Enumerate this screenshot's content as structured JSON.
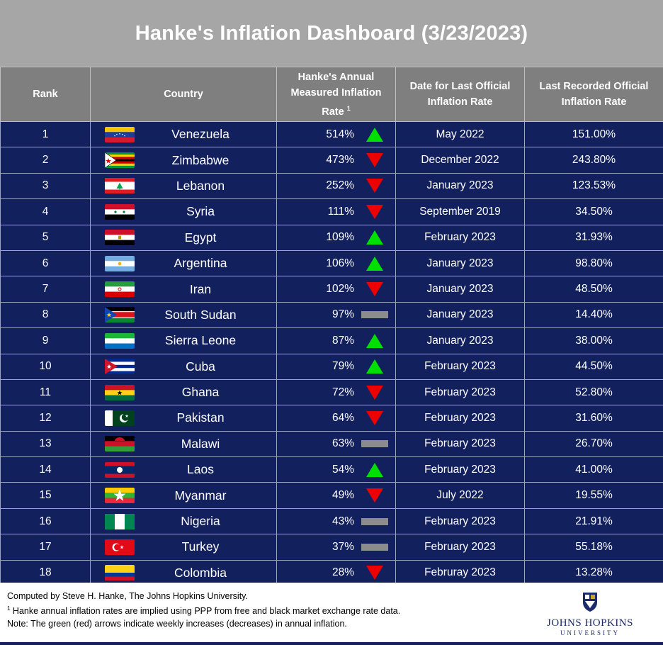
{
  "title": "Hanke's Inflation Dashboard (3/23/2023)",
  "colors": {
    "header_bg": "#7f7f7f",
    "title_bg": "#a6a6a6",
    "row_bg": "#12205e",
    "up": "#00e000",
    "down": "#ee0000",
    "flat": "#8c8c8c"
  },
  "headers": {
    "rank": "Rank",
    "country": "Country",
    "hanke_line1": "Hanke's Annual",
    "hanke_line2": "Measured Inflation",
    "hanke_line3": "Rate",
    "hanke_sup": "1",
    "date_line1": "Date for Last Official",
    "date_line2": "Inflation Rate",
    "official_line1": "Last Recorded Official",
    "official_line2": "Inflation Rate"
  },
  "chart_data": {
    "type": "table",
    "columns": [
      "Rank",
      "Country",
      "Hanke's Annual Measured Inflation Rate",
      "Date for Last Official Inflation Rate",
      "Last Recorded Official Inflation Rate"
    ],
    "rows": [
      {
        "rank": "1",
        "country": "Venezuela",
        "flag": "venezuela-flag",
        "hanke": "514%",
        "trend": "up",
        "date": "May 2022",
        "official": "151.00%"
      },
      {
        "rank": "2",
        "country": "Zimbabwe",
        "flag": "zimbabwe-flag",
        "hanke": "473%",
        "trend": "down",
        "date": "December 2022",
        "official": "243.80%"
      },
      {
        "rank": "3",
        "country": "Lebanon",
        "flag": "lebanon-flag",
        "hanke": "252%",
        "trend": "down",
        "date": "January 2023",
        "official": "123.53%"
      },
      {
        "rank": "4",
        "country": "Syria",
        "flag": "syria-flag",
        "hanke": "111%",
        "trend": "down",
        "date": "September 2019",
        "official": "34.50%"
      },
      {
        "rank": "5",
        "country": "Egypt",
        "flag": "egypt-flag",
        "hanke": "109%",
        "trend": "up",
        "date": "February 2023",
        "official": "31.93%"
      },
      {
        "rank": "6",
        "country": "Argentina",
        "flag": "argentina-flag",
        "hanke": "106%",
        "trend": "up",
        "date": "January 2023",
        "official": "98.80%"
      },
      {
        "rank": "7",
        "country": "Iran",
        "flag": "iran-flag",
        "hanke": "102%",
        "trend": "down",
        "date": "January 2023",
        "official": "48.50%"
      },
      {
        "rank": "8",
        "country": "South Sudan",
        "flag": "south-sudan-flag",
        "hanke": "97%",
        "trend": "flat",
        "date": "January 2023",
        "official": "14.40%"
      },
      {
        "rank": "9",
        "country": "Sierra Leone",
        "flag": "sierra-leone-flag",
        "hanke": "87%",
        "trend": "up",
        "date": "January 2023",
        "official": "38.00%"
      },
      {
        "rank": "10",
        "country": "Cuba",
        "flag": "cuba-flag",
        "hanke": "79%",
        "trend": "up",
        "date": "February 2023",
        "official": "44.50%"
      },
      {
        "rank": "11",
        "country": "Ghana",
        "flag": "ghana-flag",
        "hanke": "72%",
        "trend": "down",
        "date": "February 2023",
        "official": "52.80%"
      },
      {
        "rank": "12",
        "country": "Pakistan",
        "flag": "pakistan-flag",
        "hanke": "64%",
        "trend": "down",
        "date": "February 2023",
        "official": "31.60%"
      },
      {
        "rank": "13",
        "country": "Malawi",
        "flag": "malawi-flag",
        "hanke": "63%",
        "trend": "flat",
        "date": "February 2023",
        "official": "26.70%"
      },
      {
        "rank": "14",
        "country": "Laos",
        "flag": "laos-flag",
        "hanke": "54%",
        "trend": "up",
        "date": "February 2023",
        "official": "41.00%"
      },
      {
        "rank": "15",
        "country": "Myanmar",
        "flag": "myanmar-flag",
        "hanke": "49%",
        "trend": "down",
        "date": "July 2022",
        "official": "19.55%"
      },
      {
        "rank": "16",
        "country": "Nigeria",
        "flag": "nigeria-flag",
        "hanke": "43%",
        "trend": "flat",
        "date": "February 2023",
        "official": "21.91%"
      },
      {
        "rank": "17",
        "country": "Turkey",
        "flag": "turkey-flag",
        "hanke": "37%",
        "trend": "flat",
        "date": "February 2023",
        "official": "55.18%"
      },
      {
        "rank": "18",
        "country": "Colombia",
        "flag": "colombia-flag",
        "hanke": "28%",
        "trend": "down",
        "date": "Februray 2023",
        "official": "13.28%"
      }
    ]
  },
  "footer": {
    "credit": "Computed by Steve H. Hanke, The Johns Hopkins University.",
    "note1_sup": "1",
    "note1": " Hanke annual inflation rates are implied using PPP from free and black market exchange rate data.",
    "note2": "Note: The green (red) arrows indicate weekly increases (decreases) in annual inflation.",
    "logo_name": "JOHNS HOPKINS",
    "logo_sub": "UNIVERSITY",
    "logo_icon": "jhu-shield-icon"
  }
}
